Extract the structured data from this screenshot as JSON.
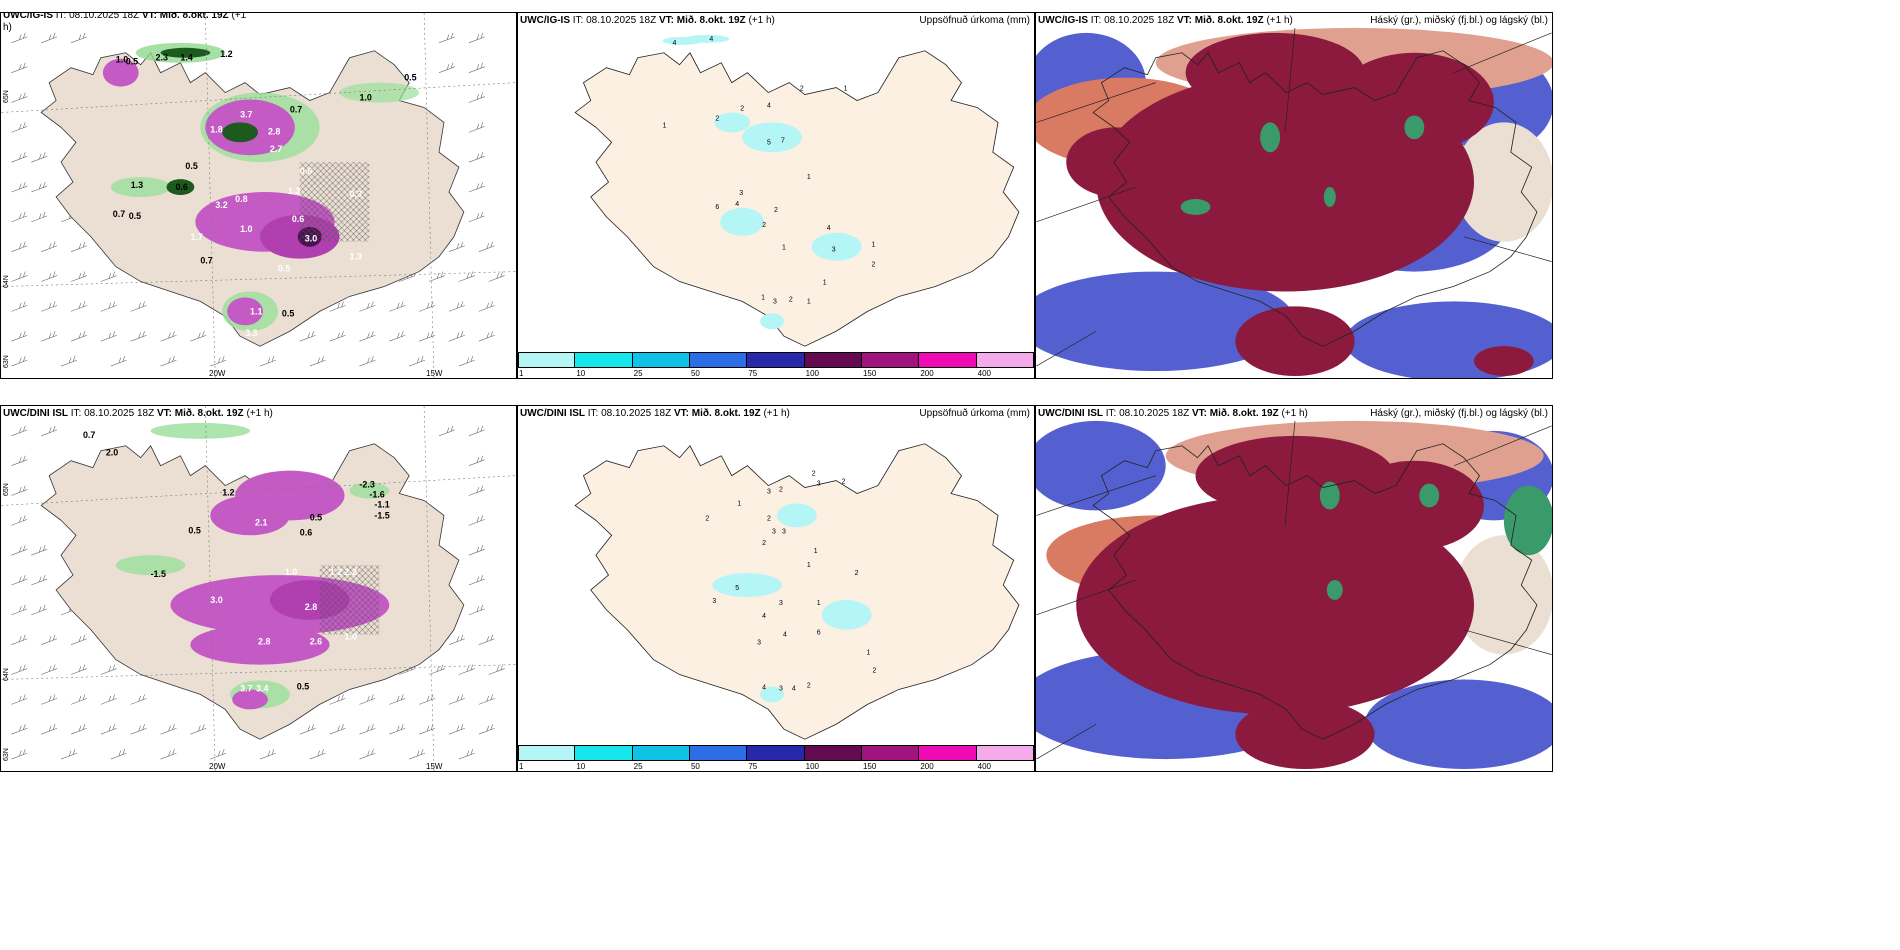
{
  "row1": {
    "p1": {
      "model": "UWC/IG-IS",
      "it_label": "IT:",
      "it_value": "08.10.2025 18Z",
      "vt_label": "VT:",
      "vt_value": "Mið. 8.okt. 19Z",
      "lead": "(+1",
      "lead2": "h)"
    },
    "p2": {
      "model": "UWC/IG-IS",
      "it_label": "IT:",
      "it_value": "08.10.2025 18Z",
      "vt_label": "VT:",
      "vt_value": "Mið. 8.okt. 19Z",
      "lead": "(+1 h)",
      "field": "Uppsöfnuð úrkoma (mm)"
    },
    "p3": {
      "model": "UWC/IG-IS",
      "it_label": "IT:",
      "it_value": "08.10.2025 18Z",
      "vt_label": "VT:",
      "vt_value": "Mið. 8.okt. 19Z",
      "lead": "(+1 h)",
      "field": "Háský (gr.), miðský (fj.bl.) og lágský (bl.)"
    }
  },
  "row2": {
    "p1": {
      "model": "UWC/DINI ISL",
      "it_label": "IT:",
      "it_value": "08.10.2025 18Z",
      "vt_label": "VT:",
      "vt_value": "Mið. 8.okt. 19Z",
      "lead": "(+1 h)"
    },
    "p2": {
      "model": "UWC/DINI ISL",
      "it_label": "IT:",
      "it_value": "08.10.2025 18Z",
      "vt_label": "VT:",
      "vt_value": "Mið. 8.okt. 19Z",
      "lead": "(+1 h)",
      "field": "Uppsöfnuð úrkoma (mm)"
    },
    "p3": {
      "model": "UWC/DINI ISL",
      "it_label": "IT:",
      "it_value": "08.10.2025 18Z",
      "vt_label": "VT:",
      "vt_value": "Mið. 8.okt. 19Z",
      "lead": "(+1 h)",
      "field": "Háský (gr.), miðský (fj.bl.) og lágský (bl.)"
    }
  },
  "axes": {
    "lon_20w": "20W",
    "lon_15w": "15W",
    "lat_65n": "65N",
    "lat_64n": "64N",
    "lat_63n": "63N"
  },
  "colorbar": {
    "ticks": [
      "1",
      "10",
      "25",
      "50",
      "75",
      "100",
      "150",
      "200",
      "400"
    ],
    "colors": [
      "#b4f5f5",
      "#14e6eb",
      "#0fc3e6",
      "#2d6ee6",
      "#2828aa",
      "#640a50",
      "#a0147d",
      "#f00ab4",
      "#f5aaeb"
    ]
  },
  "labels_r1_p1": [
    "1.0",
    "0.5",
    "2.3",
    "1.4",
    "1.2",
    "3.7",
    "0.7",
    "1.0",
    "0.5",
    "0.6",
    "0.3",
    "0.5",
    "1.3",
    "0.6",
    "0.7",
    "0.5",
    "3.2",
    "1.7",
    "0.8",
    "1.3",
    "0.6",
    "3.0",
    "1.3",
    "1.0",
    "2.7",
    "1.1",
    "0.7",
    "0.5",
    "3.3",
    "0.5",
    "1.8",
    "2.8"
  ],
  "labels_r1_p2": [
    "4",
    "4",
    "2",
    "1",
    "4",
    "2",
    "2",
    "1",
    "5",
    "7",
    "6",
    "3",
    "4",
    "2",
    "2",
    "4",
    "1",
    "1",
    "3",
    "1",
    "2",
    "1",
    "1",
    "3",
    "1",
    "2"
  ],
  "labels_r2_p1": [
    "0.7",
    "2.0",
    "-2.3",
    "-1.6",
    "-1.1",
    "-1.5",
    "-1.5",
    "1.2",
    "0.5",
    "2.1",
    "0.6",
    "0.5",
    "1.0",
    "1.2",
    "2.2",
    "2.8",
    "3.0",
    "2.6",
    "1.0",
    "0.5",
    "3.7",
    "3.4",
    "2.8"
  ],
  "labels_r2_p2": [
    "2",
    "2",
    "3",
    "3",
    "2",
    "1",
    "2",
    "2",
    "3",
    "3",
    "2",
    "1",
    "1",
    "2",
    "5",
    "3",
    "4",
    "3",
    "4",
    "6",
    "3",
    "1",
    "1",
    "2",
    "4",
    "3",
    "4",
    "2"
  ]
}
